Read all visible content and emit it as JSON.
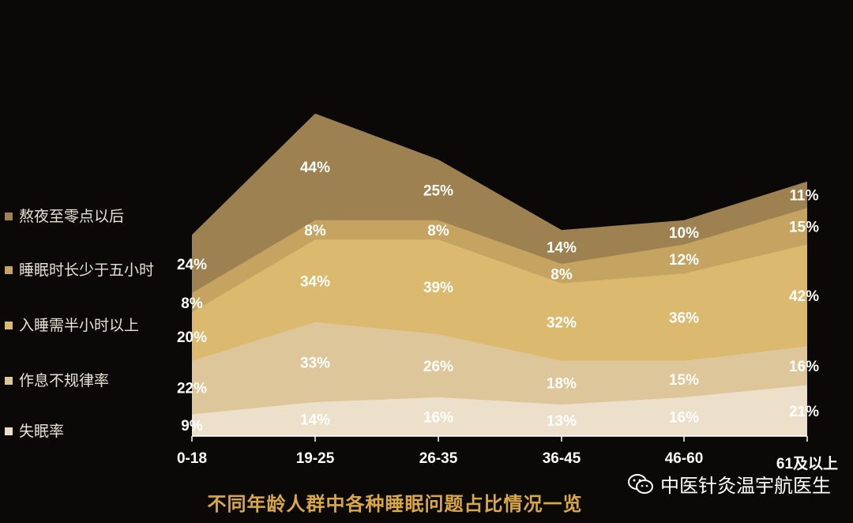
{
  "chart_data": {
    "type": "area",
    "stacked": true,
    "categories": [
      "0-18",
      "19-25",
      "26-35",
      "36-45",
      "46-60",
      "61及以上"
    ],
    "series": [
      {
        "name": "失眠率",
        "values": [
          9,
          14,
          16,
          13,
          16,
          21
        ],
        "color": "#ede0cb"
      },
      {
        "name": "作息不规律率",
        "values": [
          22,
          33,
          26,
          18,
          15,
          16
        ],
        "color": "#dec69b"
      },
      {
        "name": "入睡需半小时以上",
        "values": [
          20,
          34,
          39,
          32,
          36,
          42
        ],
        "color": "#dbba6f"
      },
      {
        "name": "睡眠时长少于五小时",
        "values": [
          8,
          8,
          8,
          8,
          12,
          15
        ],
        "color": "#c5a462"
      },
      {
        "name": "熬夜至零点以后",
        "values": [
          24,
          44,
          25,
          14,
          10,
          11
        ],
        "color": "#9d8150"
      }
    ],
    "data_labels": {
      "失眠率": [
        "9%",
        "14%",
        "16%",
        "13%",
        "16%",
        "21%"
      ],
      "作息不规律率": [
        "22%",
        "33%",
        "26%",
        "18%",
        "15%",
        "16%"
      ],
      "入睡需半小时以上": [
        "20%",
        "34%",
        "39%",
        "32%",
        "36%",
        "42%"
      ],
      "睡眠时长少于五小时": [
        "8%",
        "8%",
        "8%",
        "8%",
        "12%",
        "15%"
      ],
      "熬夜至零点以后": [
        "24%",
        "44%",
        "25%",
        "14%",
        "10%",
        "11%"
      ]
    },
    "legend_position": "left",
    "grid": false
  },
  "caption": "不同年龄人群中各种睡眠问题占比情况一览",
  "watermark": {
    "text": "中医针灸温宇航医生",
    "icon": "wechat-icon"
  },
  "colors": {
    "background": "#0b0907",
    "caption": "#d9a844",
    "axis": "#ffffff"
  }
}
